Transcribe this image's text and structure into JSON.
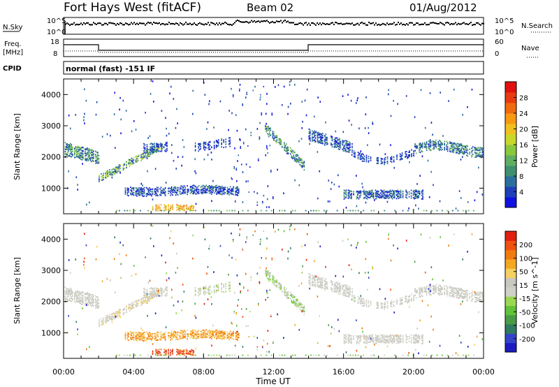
{
  "header": {
    "station": "Fort Hays West (fitACF)",
    "beam": "Beam 02",
    "date": "01/Aug/2012"
  },
  "labels": {
    "nsky": "N.Sky",
    "nsearch": "N.Search",
    "freq_line1": "Freq.",
    "freq_line2": "[MHz]",
    "nave": "Nave",
    "cpid": "CPID",
    "mode": "normal (fast) -151 IF"
  },
  "noise_axis": {
    "left_ticks": [
      "10^5",
      "10^0"
    ],
    "right_ticks": [
      "10^5",
      "10^0"
    ]
  },
  "freq_axis": {
    "left_ticks": [
      "18",
      "8"
    ],
    "right_ticks": [
      "60",
      "0"
    ]
  },
  "chart_data": [
    {
      "type": "heatmap",
      "title": "",
      "xlabel": "",
      "ylabel": "Slant Range [km]",
      "ylim": [
        180,
        4500
      ],
      "xlim": [
        "00:00",
        "24:00"
      ],
      "yticks": [
        "1000",
        "2000",
        "3000",
        "4000"
      ],
      "colorbar": {
        "label": "Power [dB]",
        "ticks": [
          "4",
          "8",
          "12",
          "16",
          "20",
          "24",
          "28"
        ],
        "colors": [
          "#1010e0",
          "#1f3fb8",
          "#2b6f9e",
          "#3f8f70",
          "#5fae62",
          "#8ac83e",
          "#c8d82a",
          "#f0c020",
          "#f79a12",
          "#f06a10",
          "#e83a10",
          "#e01010"
        ]
      }
    },
    {
      "type": "heatmap",
      "title": "",
      "xlabel": "Time UT",
      "ylabel": "Slant Range [km]",
      "ylim": [
        180,
        4500
      ],
      "xlim": [
        "00:00",
        "24:00"
      ],
      "xticks": [
        "00:00",
        "04:00",
        "08:00",
        "12:00",
        "16:00",
        "20:00",
        "00:00"
      ],
      "yticks": [
        "1000",
        "2000",
        "3000",
        "4000"
      ],
      "colorbar": {
        "label": "Velocity [m s^-1]",
        "ticks": [
          "200",
          "100",
          "50",
          "15",
          "-15",
          "-50",
          "-100",
          "-200"
        ],
        "colors": [
          "#1c1cc0",
          "#3344c8",
          "#2f7a60",
          "#4a9a48",
          "#62c23a",
          "#9ad850",
          "#d0d0c8",
          "#c8c8c0",
          "#f4d060",
          "#f5a623",
          "#f07b10",
          "#f05010",
          "#e02010"
        ]
      }
    }
  ]
}
